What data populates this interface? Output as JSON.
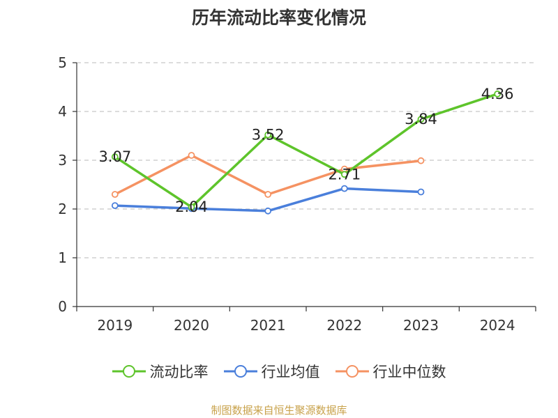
{
  "chart_data": {
    "type": "line",
    "title": "历年流动比率变化情况",
    "categories": [
      "2019",
      "2020",
      "2021",
      "2022",
      "2023",
      "2024"
    ],
    "ylim": [
      0,
      5
    ],
    "yticks": [
      "0",
      "1",
      "2",
      "3",
      "4",
      "5"
    ],
    "grid": true,
    "legend_position": "bottom",
    "series": [
      {
        "name": "流动比率",
        "color": "#5ec42b",
        "values": [
          3.07,
          2.04,
          3.52,
          2.71,
          3.84,
          4.36
        ],
        "labels": [
          "3.07",
          "2.04",
          "3.52",
          "2.71",
          "3.84",
          "4.36"
        ]
      },
      {
        "name": "行业均值",
        "color": "#4a7fdb",
        "values": [
          2.07,
          2.01,
          1.96,
          2.42,
          2.35,
          null
        ]
      },
      {
        "name": "行业中位数",
        "color": "#f59262",
        "values": [
          2.3,
          3.1,
          2.3,
          2.82,
          2.99,
          null
        ]
      }
    ]
  },
  "footer": {
    "source": "制图数据来自恒生聚源数据库"
  }
}
